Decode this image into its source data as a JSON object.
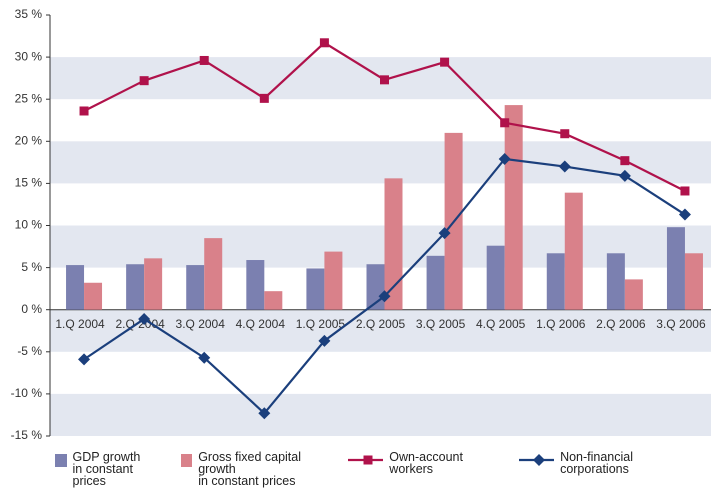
{
  "chart_data": {
    "type": "bar",
    "categories": [
      "1.Q 2004",
      "2.Q 2004",
      "3.Q 2004",
      "4.Q 2004",
      "1.Q 2005",
      "2.Q 2005",
      "3.Q 2005",
      "4.Q 2005",
      "1.Q 2006",
      "2.Q 2006",
      "3.Q 2006"
    ],
    "series": [
      {
        "name": "GDP growth\nin constant prices",
        "type": "bar",
        "color": "#7b80b0",
        "values": [
          5.3,
          5.4,
          5.3,
          5.9,
          4.9,
          5.4,
          6.4,
          7.6,
          6.7,
          6.7,
          9.8
        ]
      },
      {
        "name": "Gross fixed capital growth\nin constant prices",
        "type": "bar",
        "color": "#d9818a",
        "values": [
          3.2,
          6.1,
          8.5,
          2.2,
          6.9,
          15.6,
          21.0,
          24.3,
          13.9,
          3.6,
          6.7
        ]
      },
      {
        "name": "Own-account workers",
        "type": "line",
        "marker": "square",
        "color": "#b0124b",
        "values": [
          23.6,
          27.2,
          29.6,
          25.1,
          31.7,
          27.3,
          29.4,
          22.2,
          20.9,
          17.7,
          14.1
        ]
      },
      {
        "name": "Non-financial corporations",
        "type": "line",
        "marker": "diamond",
        "color": "#1b3f7c",
        "values": [
          -5.9,
          -1.1,
          -5.7,
          -12.3,
          -3.7,
          1.6,
          9.1,
          17.9,
          17.0,
          15.9,
          11.3
        ]
      }
    ],
    "ylim": [
      -15,
      35
    ],
    "yticks": [
      {
        "value": 35,
        "label": "35 %"
      },
      {
        "value": 30,
        "label": "30 %"
      },
      {
        "value": 25,
        "label": "25 %"
      },
      {
        "value": 20,
        "label": "20 %"
      },
      {
        "value": 15,
        "label": "15 %"
      },
      {
        "value": 10,
        "label": "10 %"
      },
      {
        "value": 5,
        "label": "5 %"
      },
      {
        "value": 0,
        "label": "0 %"
      },
      {
        "value": -5,
        "label": "-5 %"
      },
      {
        "value": -10,
        "label": "-10 %"
      },
      {
        "value": -15,
        "label": "-15 %"
      }
    ],
    "bands": true
  }
}
